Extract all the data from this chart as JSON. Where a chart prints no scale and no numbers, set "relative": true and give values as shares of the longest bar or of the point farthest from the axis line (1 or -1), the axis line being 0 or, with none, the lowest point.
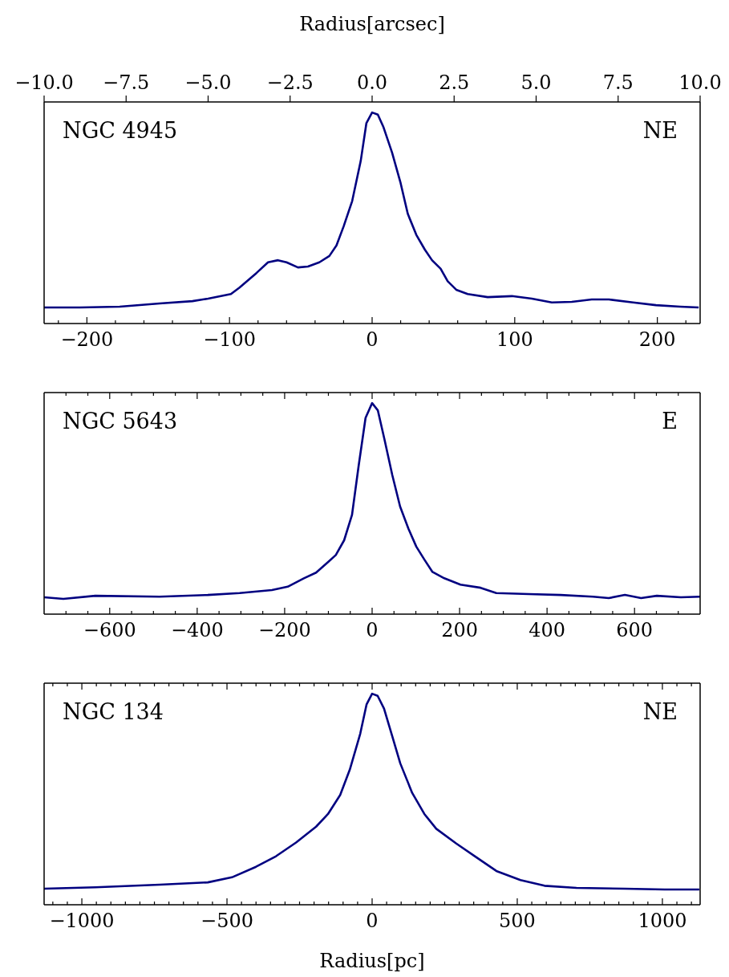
{
  "chart_data": [
    {
      "type": "line",
      "relative": true,
      "tick_labels": "x",
      "annotations": [
        "NGC 4945",
        "NE"
      ],
      "x2label": "Radius[arcsec]",
      "x2lim": [
        -10,
        10
      ],
      "x2ticks": [
        {
          "value": -10,
          "label": "−10.0"
        },
        {
          "value": -7.5,
          "label": "−7.5"
        },
        {
          "value": -5,
          "label": "−5.0"
        },
        {
          "value": -2.5,
          "label": "−2.5"
        },
        {
          "value": 0,
          "label": "0.0"
        },
        {
          "value": 2.5,
          "label": "2.5"
        },
        {
          "value": 5,
          "label": "5.0"
        },
        {
          "value": 7.5,
          "label": "7.5"
        },
        {
          "value": 10,
          "label": "10.0"
        }
      ],
      "xlim": [
        -230,
        230
      ],
      "xticks": [
        {
          "value": -220,
          "label": null
        },
        -200,
        {
          "value": -180,
          "label": null
        },
        {
          "value": -160,
          "label": null
        },
        {
          "value": -140,
          "label": null
        },
        {
          "value": -120,
          "label": null
        },
        -100,
        {
          "value": -80,
          "label": null
        },
        {
          "value": -60,
          "label": null
        },
        {
          "value": -40,
          "label": null
        },
        {
          "value": -20,
          "label": null
        },
        0,
        {
          "value": 20,
          "label": null
        },
        {
          "value": 40,
          "label": null
        },
        {
          "value": 60,
          "label": null
        },
        {
          "value": 80,
          "label": null
        },
        100,
        {
          "value": 120,
          "label": null
        },
        {
          "value": 140,
          "label": null
        },
        {
          "value": 160,
          "label": null
        },
        {
          "value": 180,
          "label": null
        },
        200,
        {
          "value": 220,
          "label": null
        }
      ],
      "x": [
        -230,
        -205,
        -177,
        -149,
        -126,
        -115,
        -99,
        -93,
        -81,
        -73,
        -66,
        -60,
        -52,
        -45,
        -37,
        -30,
        -25,
        -20,
        -14,
        -8,
        -4,
        0,
        4,
        8,
        14,
        20,
        25,
        31,
        37,
        42,
        48,
        53,
        59,
        67,
        81,
        98,
        112,
        126,
        140,
        154,
        166,
        183,
        199,
        216,
        229
      ],
      "series": [
        {
          "color": "#000080",
          "values": [
            0.076,
            0.076,
            0.08,
            0.095,
            0.106,
            0.118,
            0.14,
            0.17,
            0.24,
            0.29,
            0.3,
            0.29,
            0.266,
            0.27,
            0.29,
            0.32,
            0.37,
            0.46,
            0.58,
            0.77,
            0.95,
            1,
            0.99,
            0.93,
            0.81,
            0.665,
            0.52,
            0.42,
            0.35,
            0.3,
            0.26,
            0.2,
            0.16,
            0.14,
            0.125,
            0.13,
            0.118,
            0.1,
            0.103,
            0.114,
            0.114,
            0.1,
            0.087,
            0.08,
            0.076
          ]
        }
      ]
    },
    {
      "type": "line",
      "relative": true,
      "tick_labels": "x",
      "annotations": [
        "NGC 5643",
        "E"
      ],
      "xlim": [
        -750,
        750
      ],
      "xticks": [
        {
          "value": -700,
          "label": null
        },
        {
          "value": -650,
          "label": null
        },
        -600,
        {
          "value": -550,
          "label": null
        },
        {
          "value": -500,
          "label": null
        },
        {
          "value": -450,
          "label": null
        },
        -400,
        {
          "value": -350,
          "label": null
        },
        {
          "value": -300,
          "label": null
        },
        {
          "value": -250,
          "label": null
        },
        -200,
        {
          "value": -150,
          "label": null
        },
        {
          "value": -100,
          "label": null
        },
        {
          "value": -50,
          "label": null
        },
        0,
        {
          "value": 50,
          "label": null
        },
        {
          "value": 100,
          "label": null
        },
        {
          "value": 150,
          "label": null
        },
        200,
        {
          "value": 250,
          "label": null
        },
        {
          "value": 300,
          "label": null
        },
        {
          "value": 350,
          "label": null
        },
        400,
        {
          "value": 450,
          "label": null
        },
        {
          "value": 500,
          "label": null
        },
        {
          "value": 550,
          "label": null
        },
        600,
        {
          "value": 650,
          "label": null
        },
        {
          "value": 700,
          "label": null
        }
      ],
      "x": [
        -750,
        -706,
        -633,
        -486,
        -376,
        -303,
        -229,
        -193,
        -156,
        -128,
        -101,
        -83,
        -64,
        -46,
        -31,
        -15,
        0,
        13,
        28,
        46,
        64,
        83,
        101,
        119,
        138,
        165,
        202,
        248,
        284,
        358,
        431,
        505,
        541,
        578,
        615,
        651,
        706,
        750
      ],
      "series": [
        {
          "color": "#000080",
          "values": [
            0.08,
            0.072,
            0.087,
            0.083,
            0.091,
            0.1,
            0.114,
            0.13,
            0.17,
            0.197,
            0.246,
            0.28,
            0.35,
            0.47,
            0.7,
            0.93,
            1,
            0.966,
            0.83,
            0.66,
            0.51,
            0.405,
            0.32,
            0.26,
            0.2,
            0.17,
            0.14,
            0.125,
            0.1,
            0.095,
            0.091,
            0.083,
            0.076,
            0.091,
            0.076,
            0.087,
            0.08,
            0.083
          ]
        }
      ]
    },
    {
      "type": "line",
      "relative": true,
      "tick_labels": "x",
      "annotations": [
        "NGC 134",
        "NE"
      ],
      "xlabel": "Radius[pc]",
      "xlim": [
        -1130,
        1130
      ],
      "xticks": [
        {
          "value": -1100,
          "label": null
        },
        {
          "value": -1050,
          "label": null
        },
        -1000,
        {
          "value": -950,
          "label": null
        },
        {
          "value": -900,
          "label": null
        },
        {
          "value": -850,
          "label": null
        },
        {
          "value": -800,
          "label": null
        },
        {
          "value": -750,
          "label": null
        },
        {
          "value": -700,
          "label": null
        },
        {
          "value": -650,
          "label": null
        },
        {
          "value": -600,
          "label": null
        },
        {
          "value": -550,
          "label": null
        },
        -500,
        {
          "value": -450,
          "label": null
        },
        {
          "value": -400,
          "label": null
        },
        {
          "value": -350,
          "label": null
        },
        {
          "value": -300,
          "label": null
        },
        {
          "value": -250,
          "label": null
        },
        {
          "value": -200,
          "label": null
        },
        {
          "value": -150,
          "label": null
        },
        {
          "value": -100,
          "label": null
        },
        {
          "value": -50,
          "label": null
        },
        0,
        {
          "value": 50,
          "label": null
        },
        {
          "value": 100,
          "label": null
        },
        {
          "value": 150,
          "label": null
        },
        {
          "value": 200,
          "label": null
        },
        {
          "value": 250,
          "label": null
        },
        {
          "value": 300,
          "label": null
        },
        {
          "value": 350,
          "label": null
        },
        {
          "value": 400,
          "label": null
        },
        {
          "value": 450,
          "label": null
        },
        500,
        {
          "value": 550,
          "label": null
        },
        {
          "value": 600,
          "label": null
        },
        {
          "value": 650,
          "label": null
        },
        {
          "value": 700,
          "label": null
        },
        {
          "value": 750,
          "label": null
        },
        {
          "value": 800,
          "label": null
        },
        {
          "value": 850,
          "label": null
        },
        {
          "value": 900,
          "label": null
        },
        {
          "value": 950,
          "label": null
        },
        1000,
        {
          "value": 1050,
          "label": null
        },
        {
          "value": 1100,
          "label": null
        }
      ],
      "x": [
        -1130,
        -953,
        -732,
        -566,
        -483,
        -400,
        -331,
        -262,
        -193,
        -152,
        -110,
        -77,
        -41,
        -19,
        0,
        19,
        41,
        69,
        97,
        138,
        180,
        221,
        290,
        359,
        428,
        511,
        594,
        704,
        870,
        1008,
        1127
      ],
      "series": [
        {
          "color": "#000080",
          "values": [
            0.076,
            0.083,
            0.095,
            0.106,
            0.13,
            0.18,
            0.23,
            0.295,
            0.37,
            0.43,
            0.52,
            0.64,
            0.81,
            0.95,
            1,
            0.99,
            0.93,
            0.8,
            0.67,
            0.53,
            0.43,
            0.36,
            0.29,
            0.225,
            0.16,
            0.117,
            0.09,
            0.08,
            0.076,
            0.072,
            0.072
          ]
        }
      ]
    }
  ]
}
